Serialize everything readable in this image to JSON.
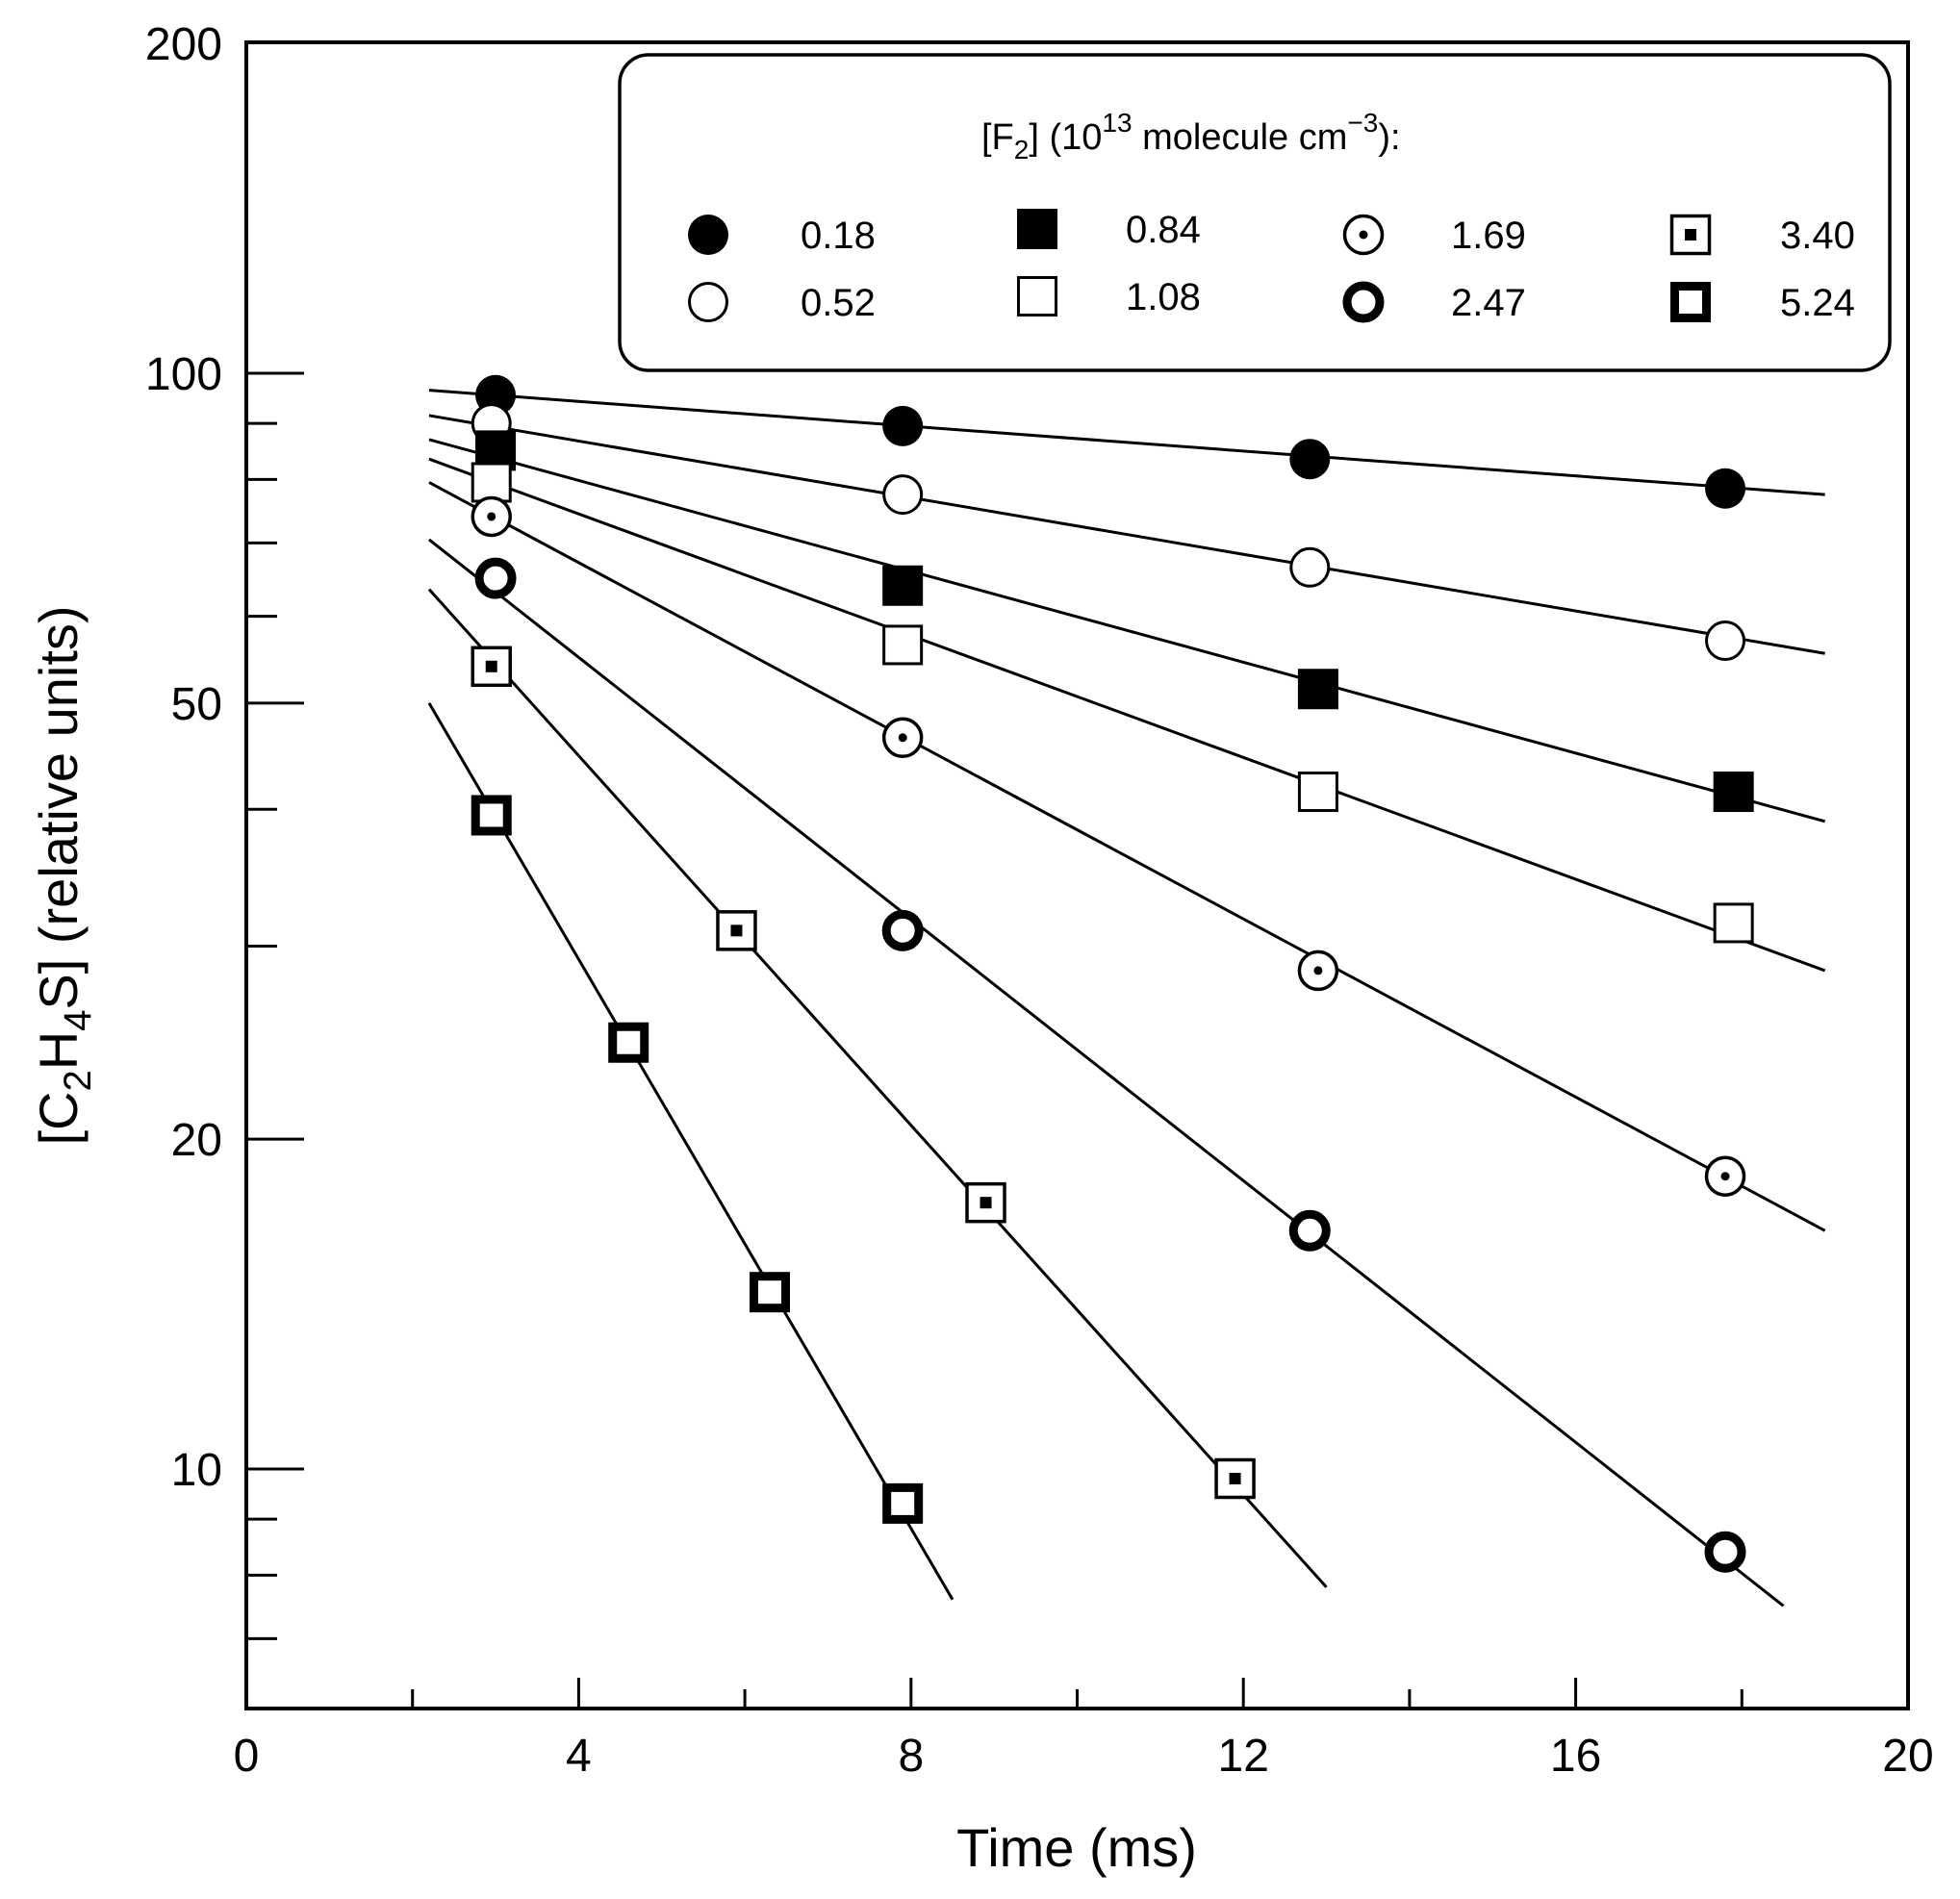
{
  "chart_data": {
    "type": "scatter",
    "title": "",
    "xlabel": "Time (ms)",
    "ylabel_parts": {
      "a": "[C",
      "s1": "2",
      "b": "H",
      "s2": "4",
      "c": "S] (relative units)"
    },
    "xlim": [
      0,
      20
    ],
    "ylim": [
      6,
      200
    ],
    "yscale": "log",
    "x_ticks": [
      0,
      4,
      8,
      12,
      16,
      20
    ],
    "x_minor_ticks": [
      2,
      6,
      10,
      14,
      18
    ],
    "y_ticks": [
      10,
      20,
      50,
      100,
      200
    ],
    "y_minor_ticks": [
      7,
      8,
      9,
      30,
      40,
      60,
      70,
      80,
      90
    ],
    "legend": {
      "title_parts": {
        "a": "[F",
        "s1": "2",
        "b": "] (10",
        "sup1": "13",
        "c": " molecule cm",
        "sup2": "−3",
        "d": "):"
      },
      "placement": "top-right"
    },
    "series": [
      {
        "name": "0.18",
        "marker": "filled-circle",
        "points": [
          [
            3.0,
            95.5
          ],
          [
            7.9,
            89.5
          ],
          [
            12.8,
            83.5
          ],
          [
            17.8,
            78.5
          ]
        ],
        "fit": [
          [
            2.2,
            96.5
          ],
          [
            19.0,
            77.5
          ]
        ]
      },
      {
        "name": "0.52",
        "marker": "open-circle",
        "points": [
          [
            2.95,
            90.0
          ],
          [
            7.9,
            77.5
          ],
          [
            12.8,
            66.5
          ],
          [
            17.8,
            57.0
          ]
        ],
        "fit": [
          [
            2.2,
            91.5
          ],
          [
            19.0,
            55.5
          ]
        ]
      },
      {
        "name": "0.84",
        "marker": "filled-square",
        "points": [
          [
            3.0,
            85.0
          ],
          [
            7.9,
            64.0
          ],
          [
            12.9,
            51.5
          ],
          [
            17.9,
            41.5
          ]
        ],
        "fit": [
          [
            2.2,
            87.0
          ],
          [
            19.0,
            39.0
          ]
        ]
      },
      {
        "name": "1.08",
        "marker": "open-square",
        "points": [
          [
            2.95,
            79.5
          ],
          [
            7.9,
            56.5
          ],
          [
            12.9,
            41.5
          ],
          [
            17.9,
            31.5
          ]
        ],
        "fit": [
          [
            2.2,
            83.5
          ],
          [
            19.0,
            28.5
          ]
        ]
      },
      {
        "name": "1.69",
        "marker": "dotted-circle",
        "points": [
          [
            2.95,
            74.0
          ],
          [
            7.9,
            46.5
          ],
          [
            12.9,
            28.5
          ],
          [
            17.8,
            18.5
          ]
        ],
        "fit": [
          [
            2.2,
            79.5
          ],
          [
            19.0,
            16.5
          ]
        ]
      },
      {
        "name": "2.47",
        "marker": "thick-circle",
        "points": [
          [
            3.0,
            65.0
          ],
          [
            7.9,
            31.0
          ],
          [
            12.8,
            16.5
          ],
          [
            17.8,
            8.4
          ]
        ],
        "fit": [
          [
            2.2,
            70.5
          ],
          [
            18.5,
            7.5
          ]
        ]
      },
      {
        "name": "3.40",
        "marker": "dotted-square",
        "points": [
          [
            2.95,
            54.0
          ],
          [
            5.9,
            31.0
          ],
          [
            8.9,
            17.5
          ],
          [
            11.9,
            9.8
          ]
        ],
        "fit": [
          [
            2.2,
            63.5
          ],
          [
            13.0,
            7.8
          ]
        ]
      },
      {
        "name": "5.24",
        "marker": "thick-square",
        "points": [
          [
            2.95,
            39.5
          ],
          [
            4.6,
            24.5
          ],
          [
            6.3,
            14.5
          ],
          [
            7.9,
            9.3
          ]
        ],
        "fit": [
          [
            2.2,
            50.0
          ],
          [
            8.5,
            7.6
          ]
        ]
      }
    ]
  }
}
